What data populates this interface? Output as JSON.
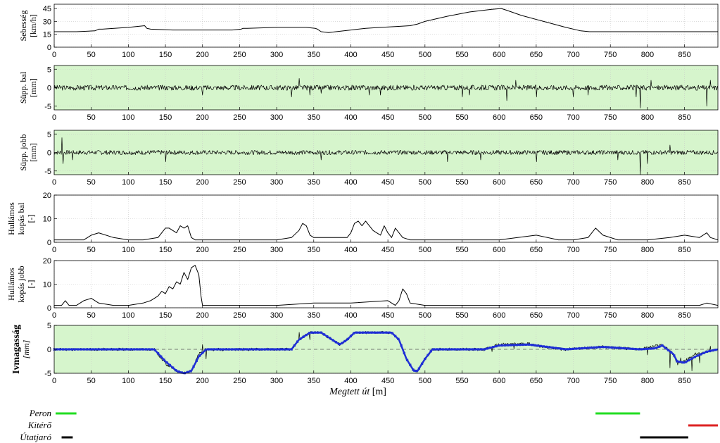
{
  "chart_data": [
    {
      "type": "line",
      "ylabel_lines": [
        "Sebesség",
        "[km/h]"
      ],
      "ylim": [
        0,
        50
      ],
      "yticks": [
        0,
        15,
        30,
        45
      ],
      "xlim": [
        0,
        895
      ],
      "xticks": [
        0,
        50,
        100,
        150,
        200,
        250,
        300,
        350,
        400,
        450,
        500,
        550,
        600,
        650,
        700,
        750,
        800,
        850
      ],
      "shade": false,
      "series": [
        {
          "kind": "points",
          "color": "#000000",
          "x": [
            0,
            30,
            55,
            60,
            65,
            100,
            122,
            125,
            130,
            160,
            200,
            240,
            252,
            255,
            260,
            300,
            340,
            352,
            355,
            360,
            370,
            380,
            400,
            420,
            440,
            460,
            480,
            490,
            500,
            530,
            560,
            590,
            603,
            610,
            630,
            660,
            690,
            710,
            722,
            725,
            800,
            895
          ],
          "y": [
            18,
            18,
            19,
            21,
            21,
            23,
            25,
            22,
            21,
            20,
            20,
            20,
            21,
            22,
            22,
            23,
            23,
            22,
            21,
            18,
            17,
            18,
            20,
            22,
            23,
            24,
            25,
            27,
            30,
            36,
            41,
            44,
            45,
            43,
            37,
            30,
            23,
            19,
            18,
            18,
            18,
            18
          ]
        }
      ]
    },
    {
      "type": "line",
      "ylabel_lines": [
        "Süpp. bal",
        "[mm]"
      ],
      "ylim": [
        -6,
        6
      ],
      "yticks": [
        -5,
        0,
        5
      ],
      "xlim": [
        0,
        895
      ],
      "xticks": [
        0,
        50,
        100,
        150,
        200,
        250,
        300,
        350,
        400,
        450,
        500,
        550,
        600,
        650,
        700,
        750,
        800,
        850
      ],
      "shade": true,
      "series": [
        {
          "kind": "noise",
          "color": "#000000",
          "amp": 0.7,
          "seed": 3,
          "spikes": [
            [
              200,
              -2
            ],
            [
              320,
              -2.5
            ],
            [
              330,
              2.5
            ],
            [
              345,
              -2
            ],
            [
              360,
              -1.5
            ],
            [
              425,
              -2
            ],
            [
              440,
              -2
            ],
            [
              550,
              -2.5
            ],
            [
              560,
              -2
            ],
            [
              610,
              -3.5
            ],
            [
              622,
              2
            ],
            [
              650,
              -2.5
            ],
            [
              700,
              -2.5
            ],
            [
              720,
              -2
            ],
            [
              785,
              -2.5
            ],
            [
              790,
              -5.5
            ],
            [
              805,
              2
            ],
            [
              880,
              -5
            ],
            [
              885,
              2
            ]
          ]
        }
      ]
    },
    {
      "type": "line",
      "ylabel_lines": [
        "Süpp. jobb",
        "[mm]"
      ],
      "ylim": [
        -6,
        6
      ],
      "yticks": [
        -5,
        0,
        5
      ],
      "xlim": [
        0,
        895
      ],
      "xticks": [
        0,
        50,
        100,
        150,
        200,
        250,
        300,
        350,
        400,
        450,
        500,
        550,
        600,
        650,
        700,
        750,
        800,
        850
      ],
      "shade": true,
      "series": [
        {
          "kind": "noise",
          "color": "#000000",
          "amp": 0.6,
          "seed": 7,
          "spikes": [
            [
              10,
              4
            ],
            [
              12,
              -3
            ],
            [
              25,
              -2
            ],
            [
              150,
              -2.5
            ],
            [
              360,
              -2
            ],
            [
              530,
              -2.5
            ],
            [
              575,
              -2
            ],
            [
              650,
              -2.5
            ],
            [
              760,
              -2
            ],
            [
              790,
              -6
            ],
            [
              800,
              -3
            ],
            [
              830,
              2
            ]
          ]
        }
      ]
    },
    {
      "type": "line",
      "ylabel_lines": [
        "Hullámos",
        "kopás bal",
        "[-]"
      ],
      "ylim": [
        0,
        20
      ],
      "yticks": [
        0,
        10,
        20
      ],
      "xlim": [
        0,
        895
      ],
      "xticks": [
        0,
        50,
        100,
        150,
        200,
        250,
        300,
        350,
        400,
        450,
        500,
        550,
        600,
        650,
        700,
        750,
        800,
        850
      ],
      "shade": false,
      "series": [
        {
          "kind": "points",
          "color": "#000000",
          "x": [
            0,
            20,
            40,
            50,
            60,
            80,
            100,
            120,
            140,
            150,
            155,
            160,
            165,
            170,
            175,
            180,
            185,
            190,
            200,
            220,
            250,
            280,
            300,
            320,
            330,
            335,
            340,
            345,
            350,
            360,
            380,
            395,
            400,
            405,
            410,
            415,
            420,
            430,
            440,
            445,
            450,
            455,
            460,
            470,
            480,
            500,
            550,
            600,
            650,
            680,
            700,
            720,
            725,
            730,
            740,
            760,
            800,
            830,
            850,
            870,
            880,
            885,
            895
          ],
          "x2": null,
          "y": [
            1,
            1,
            1,
            3,
            4,
            2,
            1,
            1,
            2,
            6,
            6,
            5,
            4,
            7,
            6,
            7,
            2,
            1,
            1,
            1,
            1,
            1,
            1,
            2,
            5,
            8,
            7,
            3,
            2,
            2,
            2,
            2,
            4,
            8,
            9,
            7,
            9,
            5,
            3,
            7,
            4,
            2,
            6,
            2,
            1,
            1,
            1,
            1,
            3,
            1,
            1,
            2,
            4,
            6,
            3,
            1,
            1,
            2,
            3,
            2,
            4,
            2,
            1
          ]
        }
      ]
    },
    {
      "type": "line",
      "ylabel_lines": [
        "Hullámos",
        "kopás jobb",
        "[-]"
      ],
      "ylim": [
        0,
        20
      ],
      "yticks": [
        0,
        10,
        20
      ],
      "xlim": [
        0,
        895
      ],
      "xticks": [
        0,
        50,
        100,
        150,
        200,
        250,
        300,
        350,
        400,
        450,
        500,
        550,
        600,
        650,
        700,
        750,
        800,
        850
      ],
      "shade": false,
      "series": [
        {
          "kind": "points",
          "color": "#000000",
          "x": [
            0,
            10,
            15,
            20,
            30,
            40,
            50,
            60,
            80,
            100,
            120,
            130,
            140,
            145,
            150,
            155,
            160,
            165,
            170,
            175,
            180,
            185,
            190,
            195,
            198,
            200,
            220,
            250,
            300,
            350,
            400,
            450,
            460,
            465,
            470,
            475,
            480,
            500,
            550,
            600,
            650,
            700,
            750,
            800,
            850,
            870,
            880,
            895
          ],
          "y": [
            1,
            1,
            3,
            1,
            1,
            3,
            4,
            2,
            1,
            1,
            2,
            3,
            5,
            7,
            6,
            9,
            8,
            11,
            10,
            15,
            12,
            17,
            18,
            14,
            5,
            1,
            1,
            1,
            1,
            2,
            2,
            3,
            1,
            3,
            8,
            6,
            2,
            1,
            1,
            1,
            1,
            1,
            1,
            1,
            1,
            1,
            2,
            1
          ]
        }
      ]
    },
    {
      "type": "line",
      "ylabel_lines": [
        "Ivmagasság",
        "[mm]"
      ],
      "ylim": [
        -5,
        5
      ],
      "yticks": [
        -5,
        0,
        5
      ],
      "xlim": [
        0,
        895
      ],
      "xticks": [
        0,
        50,
        100,
        150,
        200,
        250,
        300,
        350,
        400,
        450,
        500,
        550,
        600,
        650,
        700,
        750,
        800,
        850
      ],
      "xlabel_italic": "Megtett út",
      "xlabel_unit": " [m]",
      "shade": true,
      "zero_line": true,
      "series": [
        {
          "kind": "noise",
          "color": "#000000",
          "amp": 0.3,
          "seed": 11,
          "base": [
            [
              0,
              0
            ],
            [
              135,
              0
            ],
            [
              150,
              -3
            ],
            [
              165,
              -4.5
            ],
            [
              175,
              -5
            ],
            [
              185,
              -4.5
            ],
            [
              195,
              -1
            ],
            [
              205,
              0
            ],
            [
              320,
              0
            ],
            [
              330,
              2
            ],
            [
              345,
              3.5
            ],
            [
              360,
              3.5
            ],
            [
              375,
              2
            ],
            [
              385,
              1
            ],
            [
              395,
              2
            ],
            [
              405,
              3.5
            ],
            [
              455,
              3.5
            ],
            [
              465,
              2
            ],
            [
              475,
              -2
            ],
            [
              485,
              -4.5
            ],
            [
              490,
              -4.5
            ],
            [
              500,
              -2
            ],
            [
              510,
              0
            ],
            [
              580,
              0
            ],
            [
              600,
              1
            ],
            [
              640,
              1.2
            ],
            [
              660,
              0.5
            ],
            [
              690,
              0
            ],
            [
              740,
              0.5
            ],
            [
              790,
              0
            ],
            [
              820,
              1
            ],
            [
              835,
              -1
            ],
            [
              840,
              -3
            ],
            [
              850,
              -2.5
            ],
            [
              865,
              -1
            ],
            [
              880,
              -0.5
            ],
            [
              895,
              0
            ]
          ],
          "spikes": [
            [
              200,
              1.5
            ],
            [
              205,
              -2
            ],
            [
              330,
              1.5
            ],
            [
              345,
              -1.5
            ],
            [
              590,
              -1
            ],
            [
              620,
              -1
            ],
            [
              800,
              -1.5
            ],
            [
              830,
              -3.5
            ],
            [
              845,
              1
            ],
            [
              860,
              -3
            ],
            [
              870,
              -2
            ],
            [
              885,
              1
            ]
          ]
        },
        {
          "kind": "points",
          "color": "#1f2fd6",
          "width": 2.5,
          "markers": true,
          "x": [
            0,
            135,
            150,
            165,
            175,
            185,
            195,
            205,
            320,
            330,
            345,
            360,
            375,
            385,
            395,
            405,
            455,
            465,
            475,
            485,
            490,
            500,
            510,
            580,
            600,
            640,
            660,
            690,
            720,
            740,
            760,
            790,
            810,
            820,
            835,
            840,
            850,
            865,
            880,
            895
          ],
          "y": [
            0,
            0,
            -2.5,
            -4.5,
            -5,
            -4.5,
            -1.5,
            0,
            0,
            2,
            3.5,
            3.5,
            2,
            1,
            2,
            3.5,
            3.5,
            2,
            -2,
            -4.5,
            -4.5,
            -2,
            0,
            0,
            0.8,
            1,
            0.6,
            0,
            0.3,
            0.5,
            0.3,
            0,
            0.2,
            0.8,
            -1,
            -2.5,
            -2.8,
            -1.5,
            -0.5,
            0
          ]
        }
      ]
    }
  ],
  "legend": [
    {
      "label": "Peron",
      "color": "#22dd22",
      "segments": [
        [
          0,
          30
        ],
        [
          730,
          790
        ]
      ]
    },
    {
      "label": "Kitérő",
      "color": "#dd2222",
      "segments": [
        [
          855,
          895
        ]
      ]
    },
    {
      "label": "Útatjaró",
      "color": "#000000",
      "segments": [
        [
          10,
          25
        ],
        [
          790,
          855
        ]
      ]
    }
  ]
}
